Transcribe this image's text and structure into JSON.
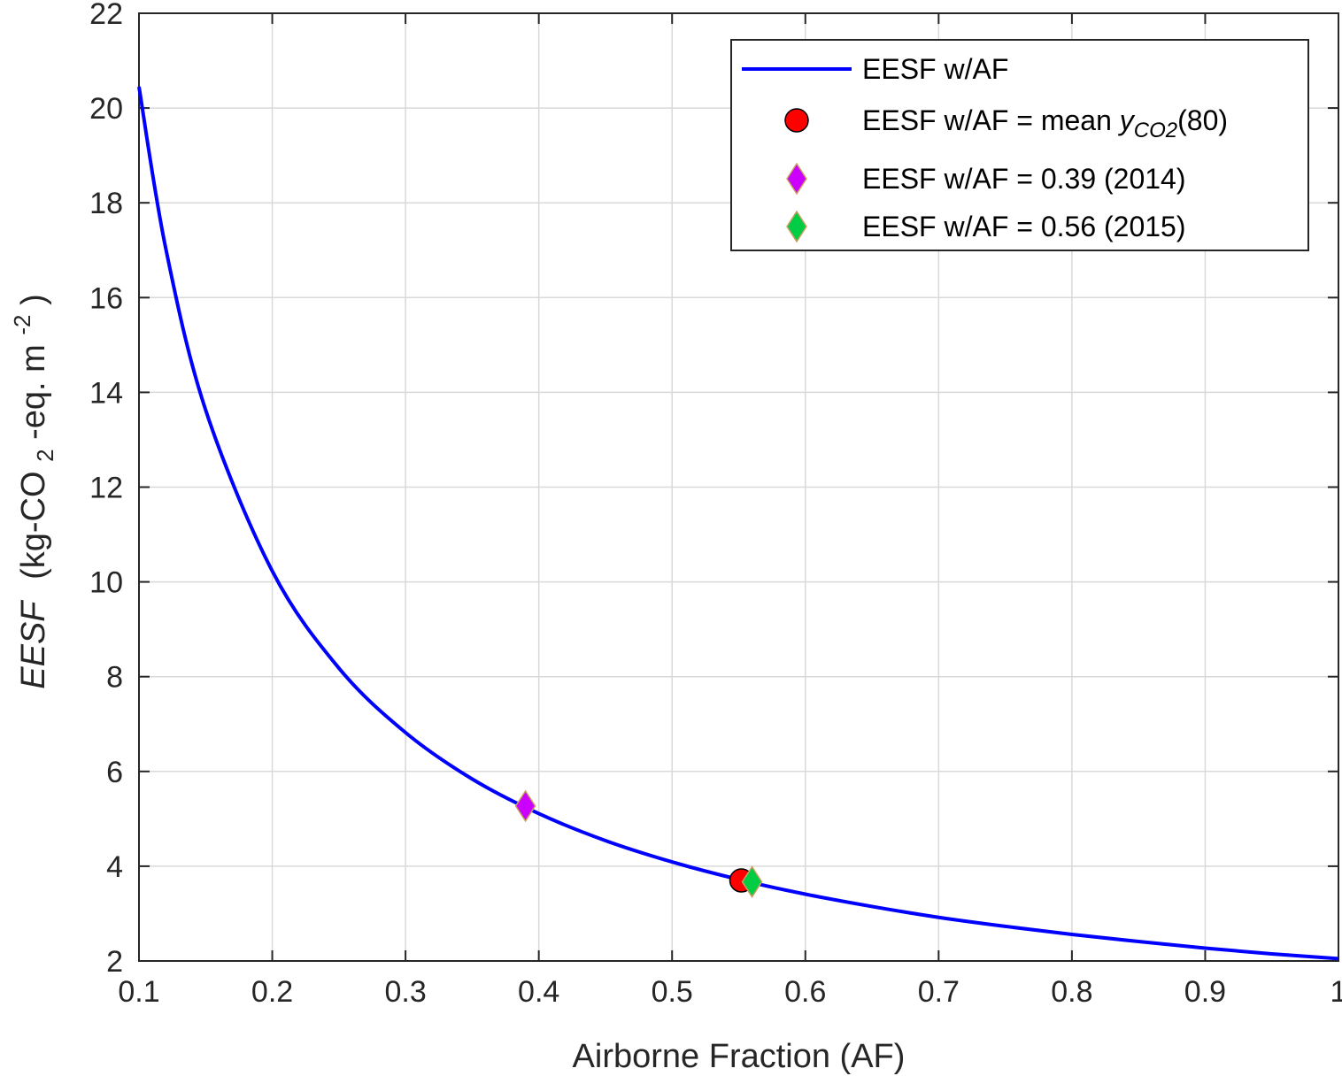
{
  "chart_data": {
    "type": "line",
    "xlabel": "Airborne Fraction (AF)",
    "ylabel": {
      "italic": "EESF",
      "prefix": "(kg-CO",
      "sub": "2",
      "middle": "-eq. m",
      "sup": "-2",
      "suffix": ")"
    },
    "xlim": [
      0.1,
      1.0
    ],
    "ylim": [
      2,
      22
    ],
    "xticks": [
      0.1,
      0.2,
      0.3,
      0.4,
      0.5,
      0.6,
      0.7,
      0.8,
      0.9,
      1.0
    ],
    "xtick_labels": [
      "0.1",
      "0.2",
      "0.3",
      "0.4",
      "0.5",
      "0.6",
      "0.7",
      "0.8",
      "0.9",
      "1"
    ],
    "yticks": [
      2,
      4,
      6,
      8,
      10,
      12,
      14,
      16,
      18,
      20,
      22
    ],
    "grid": true,
    "legend_position": "top-right",
    "series": [
      {
        "name": "EESF w/AF",
        "kind": "line",
        "color": "#0000ff",
        "x": [
          0.1,
          0.12,
          0.15,
          0.2,
          0.25,
          0.3,
          0.35,
          0.4,
          0.45,
          0.5,
          0.55,
          0.6,
          0.65,
          0.7,
          0.75,
          0.8,
          0.85,
          0.9,
          0.95,
          1.0
        ],
        "y": [
          20.45,
          17.05,
          13.63,
          10.23,
          8.18,
          6.82,
          5.84,
          5.11,
          4.54,
          4.09,
          3.72,
          3.41,
          3.15,
          2.92,
          2.73,
          2.56,
          2.41,
          2.27,
          2.15,
          2.05
        ]
      },
      {
        "name_parts": {
          "base": "EESF w/AF = mean ",
          "symbol": "y",
          "sub": "CO2",
          "suffix": "(80)"
        },
        "kind": "marker",
        "marker": "circle",
        "color": "#ff0000",
        "x": [
          0.552
        ],
        "y": [
          3.7
        ]
      },
      {
        "name": "EESF w/AF = 0.39 (2014)",
        "kind": "marker",
        "marker": "diamond",
        "color": "#cc00ff",
        "x": [
          0.39
        ],
        "y": [
          5.27
        ]
      },
      {
        "name": "EESF w/AF = 0.56 (2015)",
        "kind": "marker",
        "marker": "diamond",
        "color": "#00cc44",
        "x": [
          0.56
        ],
        "y": [
          3.67
        ]
      }
    ]
  }
}
